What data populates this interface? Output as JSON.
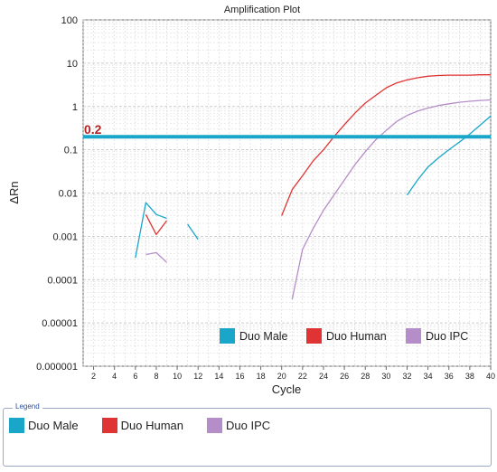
{
  "chart_data": {
    "type": "line",
    "title": "Amplification Plot",
    "xlabel": "Cycle",
    "ylabel": "ΔRn",
    "xlim": [
      1,
      40
    ],
    "ylim": [
      1e-06,
      100
    ],
    "yscale": "log",
    "x_ticks": [
      2,
      4,
      6,
      8,
      10,
      12,
      14,
      16,
      18,
      20,
      22,
      24,
      26,
      28,
      30,
      32,
      34,
      36,
      38,
      40
    ],
    "y_ticks": [
      {
        "value": 1e-06,
        "label": "0.000001"
      },
      {
        "value": 1e-05,
        "label": "0.00001"
      },
      {
        "value": 0.0001,
        "label": "0.0001"
      },
      {
        "value": 0.001,
        "label": "0.001"
      },
      {
        "value": 0.01,
        "label": "0.01"
      },
      {
        "value": 0.1,
        "label": "0.1"
      },
      {
        "value": 1,
        "label": "1"
      },
      {
        "value": 10,
        "label": "10"
      },
      {
        "value": 100,
        "label": "100"
      }
    ],
    "grid": true,
    "threshold": {
      "value": 0.2,
      "label": "0.2",
      "color": "#1aa6c8"
    },
    "series": [
      {
        "name": "Duo Male",
        "color": "#1aa6c8",
        "segments": [
          [
            [
              6,
              0.00032
            ],
            [
              7,
              0.006
            ],
            [
              8,
              0.0032
            ],
            [
              9,
              0.0026
            ]
          ],
          [
            [
              11,
              0.0019
            ],
            [
              12,
              0.00085
            ]
          ],
          [
            [
              32,
              0.009
            ],
            [
              33,
              0.02
            ],
            [
              34,
              0.04
            ],
            [
              35,
              0.065
            ],
            [
              36,
              0.1
            ],
            [
              37,
              0.15
            ],
            [
              38,
              0.23
            ],
            [
              39,
              0.37
            ],
            [
              40,
              0.6
            ]
          ]
        ]
      },
      {
        "name": "Duo Human",
        "color": "#e03434",
        "segments": [
          [
            [
              7,
              0.0032
            ],
            [
              8,
              0.0011
            ],
            [
              9,
              0.0023
            ]
          ],
          [
            [
              20,
              0.003
            ],
            [
              21,
              0.012
            ],
            [
              22,
              0.025
            ],
            [
              23,
              0.055
            ],
            [
              24,
              0.1
            ],
            [
              25,
              0.2
            ],
            [
              26,
              0.38
            ],
            [
              27,
              0.7
            ],
            [
              28,
              1.2
            ],
            [
              29,
              1.8
            ],
            [
              30,
              2.7
            ],
            [
              31,
              3.5
            ],
            [
              32,
              4.1
            ],
            [
              33,
              4.6
            ],
            [
              34,
              5.0
            ],
            [
              35,
              5.2
            ],
            [
              36,
              5.3
            ],
            [
              37,
              5.3
            ],
            [
              38,
              5.3
            ],
            [
              39,
              5.4
            ],
            [
              40,
              5.4
            ]
          ]
        ]
      },
      {
        "name": "Duo IPC",
        "color": "#b58ec9",
        "segments": [
          [
            [
              7,
              0.00038
            ],
            [
              8,
              0.00042
            ],
            [
              9,
              0.00025
            ]
          ],
          [
            [
              21,
              3.5e-05
            ],
            [
              22,
              0.0005
            ],
            [
              23,
              0.0015
            ],
            [
              24,
              0.004
            ],
            [
              25,
              0.009
            ],
            [
              26,
              0.02
            ],
            [
              27,
              0.045
            ],
            [
              28,
              0.09
            ],
            [
              29,
              0.17
            ],
            [
              30,
              0.28
            ],
            [
              31,
              0.45
            ],
            [
              32,
              0.62
            ],
            [
              33,
              0.78
            ],
            [
              34,
              0.92
            ],
            [
              35,
              1.05
            ],
            [
              36,
              1.15
            ],
            [
              37,
              1.25
            ],
            [
              38,
              1.32
            ],
            [
              39,
              1.38
            ],
            [
              40,
              1.42
            ]
          ]
        ]
      }
    ],
    "legend_position": "bottom-right"
  },
  "legend_panel": {
    "title": "Legend",
    "items": [
      {
        "label": "Duo Male",
        "color": "#1aa6c8"
      },
      {
        "label": "Duo Human",
        "color": "#e03434"
      },
      {
        "label": "Duo IPC",
        "color": "#b58ec9"
      }
    ]
  }
}
